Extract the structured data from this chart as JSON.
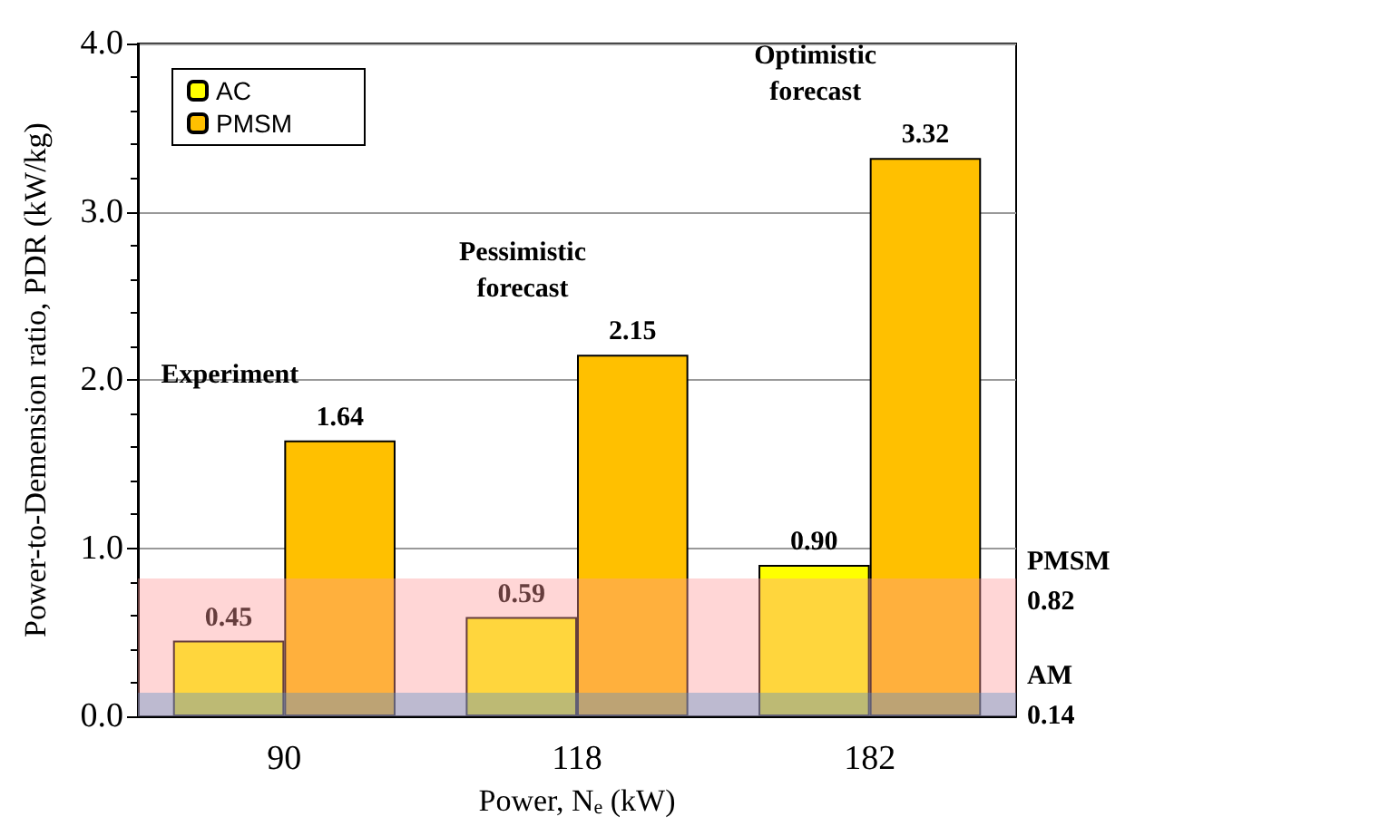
{
  "chart_data": {
    "type": "bar",
    "xlabel": "Power, N$_{e}$ (kW)",
    "ylabel": "Power-to-Demension ratio, PDR (kW/kg)",
    "categories": [
      "90",
      "118",
      "182"
    ],
    "series": [
      {
        "name": "AC",
        "color": "#ffff00",
        "values": [
          0.45,
          0.59,
          0.9
        ],
        "value_labels": [
          "0.45",
          "0.59",
          "0.90"
        ]
      },
      {
        "name": "PMSM",
        "color": "#ffc000",
        "values": [
          1.64,
          2.15,
          3.32
        ],
        "value_labels": [
          "1.64",
          "2.15",
          "3.32"
        ]
      }
    ],
    "ylim": [
      0,
      4
    ],
    "yticks": [
      {
        "value": 0,
        "label": "0.0"
      },
      {
        "value": 1,
        "label": "1.0"
      },
      {
        "value": 2,
        "label": "2.0"
      },
      {
        "value": 3,
        "label": "3.0"
      },
      {
        "value": 4,
        "label": "4.0"
      }
    ],
    "bands": [
      {
        "axis": "y",
        "from": 0,
        "to": 0.82,
        "label": "PMSM 0.82",
        "color": "#ff9999"
      },
      {
        "axis": "y",
        "from": 0,
        "to": 0.14,
        "label": "AM 0.14",
        "color": "#5b91c8"
      }
    ],
    "annotations": [
      "Experiment",
      "Pessimistic forecast",
      "Optimistic forecast"
    ],
    "grid": "y",
    "legend": "top left"
  }
}
